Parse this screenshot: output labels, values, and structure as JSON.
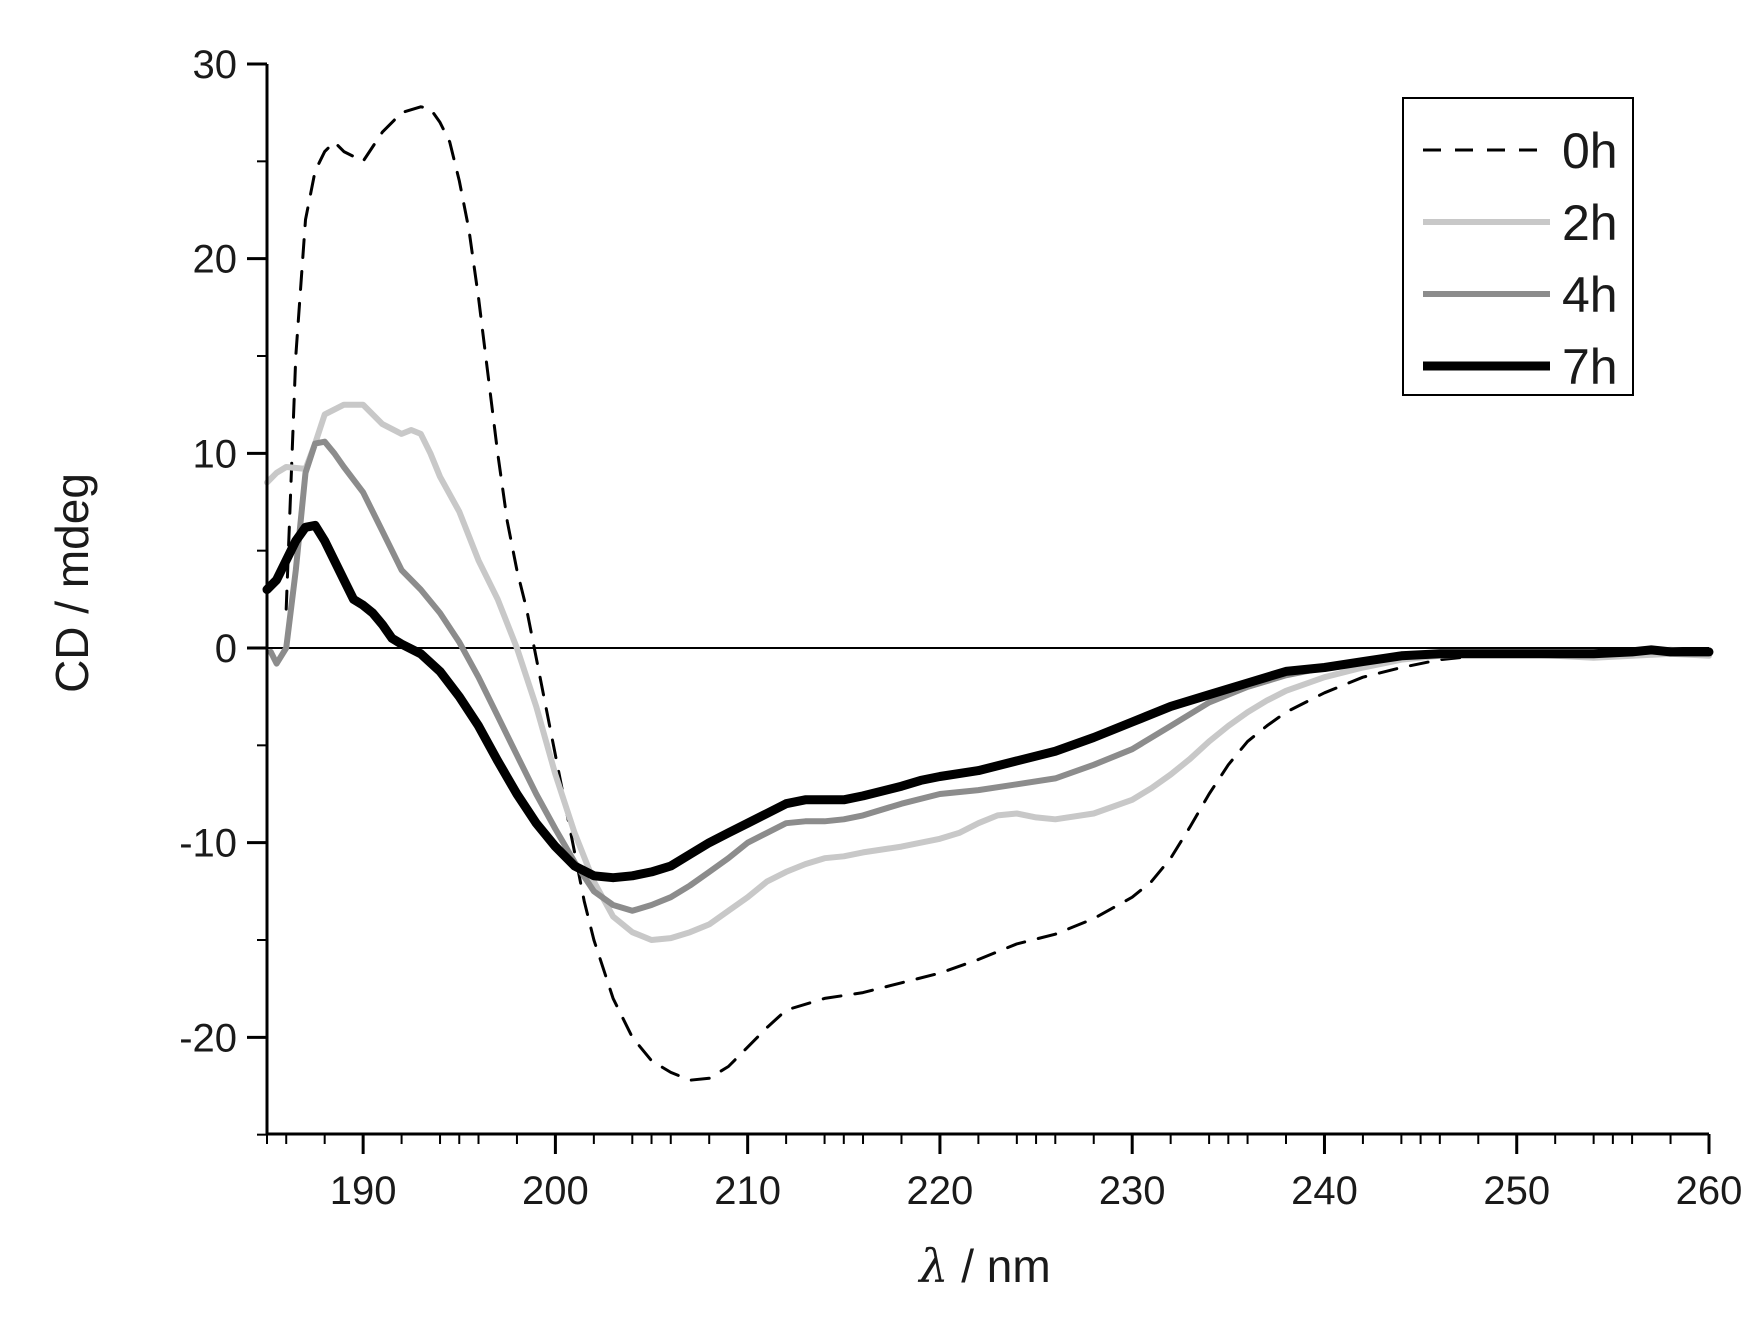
{
  "chart_data": {
    "type": "line",
    "title": "",
    "xlabel_symbol": "λ",
    "xlabel_unit": " / nm",
    "ylabel": "CD / mdeg",
    "xlim": [
      185,
      260
    ],
    "ylim": [
      -25,
      30
    ],
    "x_ticks": [
      190,
      200,
      210,
      220,
      230,
      240,
      250,
      260
    ],
    "x_tick_labels": [
      "190",
      "200",
      "210",
      "220",
      "230",
      "240",
      "250",
      "260"
    ],
    "y_ticks": [
      -20,
      -10,
      0,
      10,
      20,
      30
    ],
    "y_tick_labels": [
      "-20",
      "-10",
      "0",
      "10",
      "20",
      "30"
    ],
    "zero_line": true,
    "legend_position": "top-right",
    "series": [
      {
        "name": "0h",
        "color": "#000000",
        "dashed": true,
        "width": "thin",
        "points": [
          [
            186,
            2
          ],
          [
            186.5,
            15
          ],
          [
            187,
            22
          ],
          [
            187.5,
            24.5
          ],
          [
            188,
            25.5
          ],
          [
            188.5,
            26
          ],
          [
            189,
            25.5
          ],
          [
            190,
            25
          ],
          [
            191,
            26.5
          ],
          [
            192,
            27.5
          ],
          [
            193,
            27.8
          ],
          [
            193.5,
            27.7
          ],
          [
            194,
            27
          ],
          [
            194.5,
            26
          ],
          [
            195,
            24
          ],
          [
            195.5,
            21.5
          ],
          [
            196,
            18
          ],
          [
            196.5,
            14
          ],
          [
            197,
            10
          ],
          [
            197.5,
            6.5
          ],
          [
            198,
            4
          ],
          [
            198.5,
            2
          ],
          [
            199,
            -0.5
          ],
          [
            199.5,
            -3
          ],
          [
            200,
            -5.5
          ],
          [
            200.5,
            -8
          ],
          [
            201,
            -10.5
          ],
          [
            201.5,
            -13
          ],
          [
            202,
            -15
          ],
          [
            203,
            -18
          ],
          [
            204,
            -20
          ],
          [
            205,
            -21.2
          ],
          [
            206,
            -21.8
          ],
          [
            207,
            -22.2
          ],
          [
            208,
            -22.1
          ],
          [
            209,
            -21.5
          ],
          [
            210,
            -20.5
          ],
          [
            211,
            -19.5
          ],
          [
            212,
            -18.6
          ],
          [
            214,
            -18
          ],
          [
            216,
            -17.7
          ],
          [
            218,
            -17.2
          ],
          [
            220,
            -16.7
          ],
          [
            222,
            -16
          ],
          [
            224,
            -15.2
          ],
          [
            226,
            -14.7
          ],
          [
            228,
            -13.9
          ],
          [
            230,
            -12.8
          ],
          [
            231,
            -12
          ],
          [
            232,
            -10.8
          ],
          [
            233,
            -9.2
          ],
          [
            234,
            -7.5
          ],
          [
            235,
            -6
          ],
          [
            236,
            -4.8
          ],
          [
            237,
            -4
          ],
          [
            238,
            -3.3
          ],
          [
            239,
            -2.8
          ],
          [
            240,
            -2.3
          ],
          [
            242,
            -1.5
          ],
          [
            244,
            -1
          ],
          [
            246,
            -0.6
          ],
          [
            248,
            -0.4
          ],
          [
            250,
            -0.3
          ],
          [
            252,
            -0.3
          ],
          [
            254,
            -0.4
          ],
          [
            256,
            -0.3
          ],
          [
            258,
            -0.2
          ],
          [
            260,
            -0.3
          ]
        ]
      },
      {
        "name": "2h",
        "color": "#c8c8c8",
        "dashed": false,
        "width": "medium",
        "points": [
          [
            185,
            8.5
          ],
          [
            185.5,
            9
          ],
          [
            186,
            9.3
          ],
          [
            187,
            9.2
          ],
          [
            187.5,
            10.5
          ],
          [
            188,
            12
          ],
          [
            189,
            12.5
          ],
          [
            190,
            12.5
          ],
          [
            191,
            11.5
          ],
          [
            192,
            11
          ],
          [
            192.5,
            11.2
          ],
          [
            193,
            11
          ],
          [
            193.5,
            10
          ],
          [
            194,
            8.8
          ],
          [
            195,
            7
          ],
          [
            196,
            4.5
          ],
          [
            197,
            2.5
          ],
          [
            198,
            0
          ],
          [
            199,
            -3
          ],
          [
            200,
            -6.5
          ],
          [
            201,
            -9.5
          ],
          [
            202,
            -12
          ],
          [
            203,
            -13.8
          ],
          [
            204,
            -14.6
          ],
          [
            205,
            -15
          ],
          [
            206,
            -14.9
          ],
          [
            207,
            -14.6
          ],
          [
            208,
            -14.2
          ],
          [
            209,
            -13.5
          ],
          [
            210,
            -12.8
          ],
          [
            211,
            -12
          ],
          [
            212,
            -11.5
          ],
          [
            213,
            -11.1
          ],
          [
            214,
            -10.8
          ],
          [
            215,
            -10.7
          ],
          [
            216,
            -10.5
          ],
          [
            218,
            -10.2
          ],
          [
            220,
            -9.8
          ],
          [
            221,
            -9.5
          ],
          [
            222,
            -9
          ],
          [
            223,
            -8.6
          ],
          [
            224,
            -8.5
          ],
          [
            225,
            -8.7
          ],
          [
            226,
            -8.8
          ],
          [
            228,
            -8.5
          ],
          [
            230,
            -7.8
          ],
          [
            231,
            -7.2
          ],
          [
            232,
            -6.5
          ],
          [
            233,
            -5.7
          ],
          [
            234,
            -4.8
          ],
          [
            235,
            -4
          ],
          [
            236,
            -3.3
          ],
          [
            237,
            -2.7
          ],
          [
            238,
            -2.2
          ],
          [
            240,
            -1.5
          ],
          [
            242,
            -1
          ],
          [
            244,
            -0.6
          ],
          [
            246,
            -0.4
          ],
          [
            248,
            -0.3
          ],
          [
            250,
            -0.3
          ],
          [
            252,
            -0.4
          ],
          [
            254,
            -0.5
          ],
          [
            256,
            -0.4
          ],
          [
            258,
            -0.3
          ],
          [
            260,
            -0.4
          ]
        ]
      },
      {
        "name": "4h",
        "color": "#8c8c8c",
        "dashed": false,
        "width": "medium",
        "points": [
          [
            185.2,
            -0.2
          ],
          [
            185.5,
            -0.8
          ],
          [
            186,
            0
          ],
          [
            186.5,
            4
          ],
          [
            187,
            9
          ],
          [
            187.5,
            10.5
          ],
          [
            188,
            10.6
          ],
          [
            188.5,
            10
          ],
          [
            189,
            9.3
          ],
          [
            190,
            8
          ],
          [
            191,
            6
          ],
          [
            192,
            4
          ],
          [
            193,
            3
          ],
          [
            194,
            1.8
          ],
          [
            195,
            0.3
          ],
          [
            196,
            -1.5
          ],
          [
            197,
            -3.5
          ],
          [
            198,
            -5.5
          ],
          [
            199,
            -7.5
          ],
          [
            200,
            -9.3
          ],
          [
            201,
            -11
          ],
          [
            202,
            -12.5
          ],
          [
            203,
            -13.2
          ],
          [
            204,
            -13.5
          ],
          [
            205,
            -13.2
          ],
          [
            206,
            -12.8
          ],
          [
            207,
            -12.2
          ],
          [
            208,
            -11.5
          ],
          [
            209,
            -10.8
          ],
          [
            210,
            -10
          ],
          [
            211,
            -9.5
          ],
          [
            212,
            -9
          ],
          [
            213,
            -8.9
          ],
          [
            214,
            -8.9
          ],
          [
            215,
            -8.8
          ],
          [
            216,
            -8.6
          ],
          [
            218,
            -8
          ],
          [
            220,
            -7.5
          ],
          [
            222,
            -7.3
          ],
          [
            224,
            -7
          ],
          [
            226,
            -6.7
          ],
          [
            228,
            -6
          ],
          [
            230,
            -5.2
          ],
          [
            232,
            -4
          ],
          [
            234,
            -2.8
          ],
          [
            236,
            -2
          ],
          [
            238,
            -1.4
          ],
          [
            240,
            -1
          ],
          [
            242,
            -0.7
          ],
          [
            244,
            -0.4
          ],
          [
            246,
            -0.3
          ],
          [
            248,
            -0.3
          ],
          [
            250,
            -0.3
          ],
          [
            252,
            -0.3
          ],
          [
            254,
            -0.3
          ],
          [
            256,
            -0.2
          ],
          [
            258,
            -0.1
          ],
          [
            260,
            -0.2
          ]
        ]
      },
      {
        "name": "7h",
        "color": "#000000",
        "dashed": false,
        "width": "thick",
        "points": [
          [
            185,
            3
          ],
          [
            185.5,
            3.5
          ],
          [
            186,
            4.5
          ],
          [
            186.5,
            5.5
          ],
          [
            187,
            6.2
          ],
          [
            187.5,
            6.3
          ],
          [
            188,
            5.5
          ],
          [
            188.5,
            4.5
          ],
          [
            189,
            3.5
          ],
          [
            189.5,
            2.5
          ],
          [
            190,
            2.2
          ],
          [
            190.5,
            1.8
          ],
          [
            191,
            1.2
          ],
          [
            191.5,
            0.5
          ],
          [
            192,
            0.2
          ],
          [
            193,
            -0.3
          ],
          [
            194,
            -1.2
          ],
          [
            195,
            -2.5
          ],
          [
            196,
            -4
          ],
          [
            197,
            -5.8
          ],
          [
            198,
            -7.5
          ],
          [
            199,
            -9
          ],
          [
            200,
            -10.2
          ],
          [
            201,
            -11.2
          ],
          [
            202,
            -11.7
          ],
          [
            203,
            -11.8
          ],
          [
            204,
            -11.7
          ],
          [
            205,
            -11.5
          ],
          [
            206,
            -11.2
          ],
          [
            207,
            -10.6
          ],
          [
            208,
            -10
          ],
          [
            209,
            -9.5
          ],
          [
            210,
            -9
          ],
          [
            211,
            -8.5
          ],
          [
            212,
            -8
          ],
          [
            213,
            -7.8
          ],
          [
            214,
            -7.8
          ],
          [
            215,
            -7.8
          ],
          [
            216,
            -7.6
          ],
          [
            218,
            -7.1
          ],
          [
            219,
            -6.8
          ],
          [
            220,
            -6.6
          ],
          [
            222,
            -6.3
          ],
          [
            224,
            -5.8
          ],
          [
            226,
            -5.3
          ],
          [
            228,
            -4.6
          ],
          [
            230,
            -3.8
          ],
          [
            232,
            -3
          ],
          [
            234,
            -2.4
          ],
          [
            236,
            -1.8
          ],
          [
            238,
            -1.2
          ],
          [
            240,
            -1
          ],
          [
            242,
            -0.7
          ],
          [
            244,
            -0.4
          ],
          [
            246,
            -0.3
          ],
          [
            248,
            -0.3
          ],
          [
            250,
            -0.3
          ],
          [
            252,
            -0.3
          ],
          [
            254,
            -0.3
          ],
          [
            256,
            -0.2
          ],
          [
            257,
            -0.1
          ],
          [
            258,
            -0.2
          ],
          [
            260,
            -0.2
          ]
        ]
      }
    ]
  }
}
